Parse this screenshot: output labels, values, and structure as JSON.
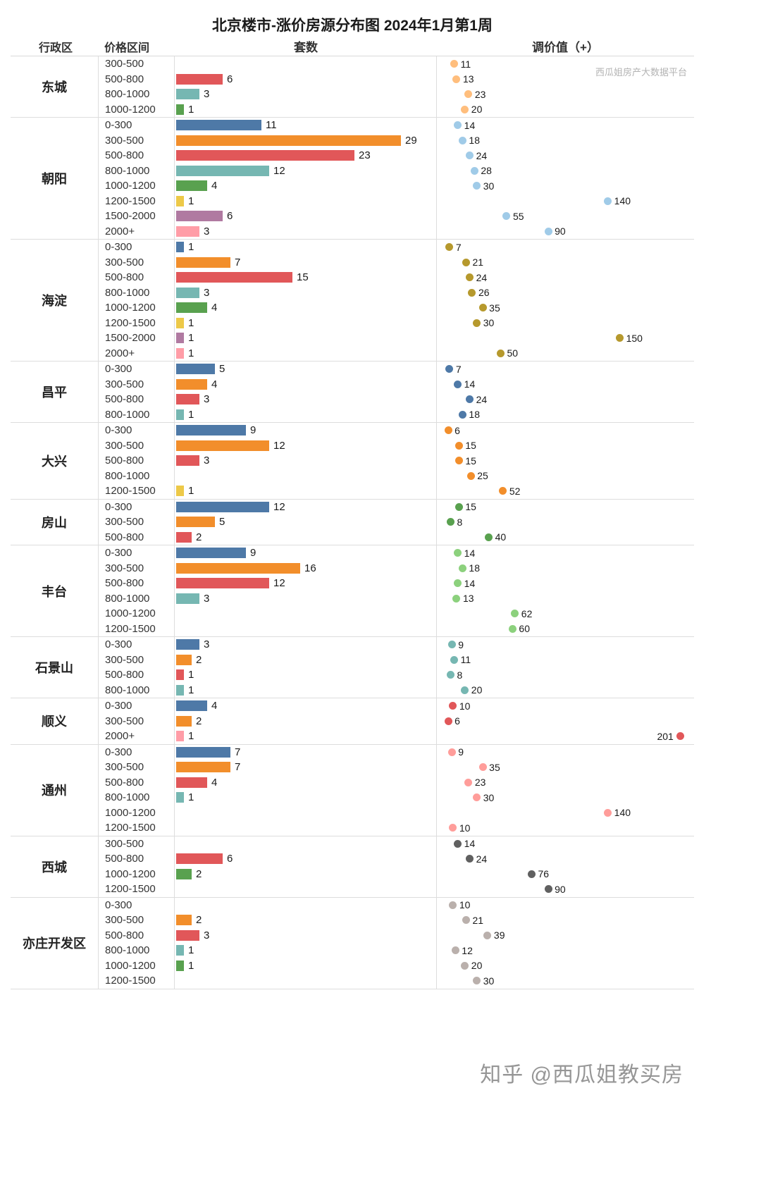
{
  "title": "北京楼市-涨价房源分布图 2024年1月第1周",
  "watermark": "西瓜姐房产大数据平台",
  "footer": "知乎 @西瓜姐教买房",
  "headers": {
    "district": "行政区",
    "price_range": "价格区间",
    "units": "套数",
    "adjustment": "调价值（+）"
  },
  "chart_data": {
    "type": "bar",
    "title": "北京楼市-涨价房源分布图 2024年1月第1周",
    "bar_axis_label": "套数",
    "dot_axis_label": "调价值（+）",
    "bar_axis_max": 30,
    "dot_axis_max": 210,
    "grid": "row-groups",
    "price_range_colors": {
      "0-300": "#4E79A7",
      "300-500": "#F28E2B",
      "500-800": "#E15759",
      "800-1000": "#76B7B2",
      "1000-1200": "#59A14F",
      "1200-1500": "#EDC948",
      "1500-2000": "#B07AA1",
      "2000+": "#FF9DA7"
    },
    "districts": [
      {
        "name": "东城",
        "dot_color": "#FFBE7D",
        "rows": [
          {
            "range": "300-500",
            "units": null,
            "adjust": 11
          },
          {
            "range": "500-800",
            "units": 6,
            "adjust": 13
          },
          {
            "range": "800-1000",
            "units": 3,
            "adjust": 23
          },
          {
            "range": "1000-1200",
            "units": 1,
            "adjust": 20
          }
        ]
      },
      {
        "name": "朝阳",
        "dot_color": "#A0CBE8",
        "rows": [
          {
            "range": "0-300",
            "units": 11,
            "adjust": 14
          },
          {
            "range": "300-500",
            "units": 29,
            "adjust": 18
          },
          {
            "range": "500-800",
            "units": 23,
            "adjust": 24
          },
          {
            "range": "800-1000",
            "units": 12,
            "adjust": 28
          },
          {
            "range": "1000-1200",
            "units": 4,
            "adjust": 30
          },
          {
            "range": "1200-1500",
            "units": 1,
            "adjust": 140
          },
          {
            "range": "1500-2000",
            "units": 6,
            "adjust": 55
          },
          {
            "range": "2000+",
            "units": 3,
            "adjust": 90
          }
        ]
      },
      {
        "name": "海淀",
        "dot_color": "#B6992D",
        "rows": [
          {
            "range": "0-300",
            "units": 1,
            "adjust": 7
          },
          {
            "range": "300-500",
            "units": 7,
            "adjust": 21
          },
          {
            "range": "500-800",
            "units": 15,
            "adjust": 24
          },
          {
            "range": "800-1000",
            "units": 3,
            "adjust": 26
          },
          {
            "range": "1000-1200",
            "units": 4,
            "adjust": 35
          },
          {
            "range": "1200-1500",
            "units": 1,
            "adjust": 30
          },
          {
            "range": "1500-2000",
            "units": 1,
            "adjust": 150
          },
          {
            "range": "2000+",
            "units": 1,
            "adjust": 50
          }
        ]
      },
      {
        "name": "昌平",
        "dot_color": "#4E79A7",
        "rows": [
          {
            "range": "0-300",
            "units": 5,
            "adjust": 7
          },
          {
            "range": "300-500",
            "units": 4,
            "adjust": 14
          },
          {
            "range": "500-800",
            "units": 3,
            "adjust": 24
          },
          {
            "range": "800-1000",
            "units": 1,
            "adjust": 18
          }
        ]
      },
      {
        "name": "大兴",
        "dot_color": "#F28E2B",
        "rows": [
          {
            "range": "0-300",
            "units": 9,
            "adjust": 6
          },
          {
            "range": "300-500",
            "units": 12,
            "adjust": 15
          },
          {
            "range": "500-800",
            "units": 3,
            "adjust": 15
          },
          {
            "range": "800-1000",
            "units": null,
            "adjust": 25
          },
          {
            "range": "1200-1500",
            "units": 1,
            "adjust": 52
          }
        ]
      },
      {
        "name": "房山",
        "dot_color": "#59A14F",
        "rows": [
          {
            "range": "0-300",
            "units": 12,
            "adjust": 15
          },
          {
            "range": "300-500",
            "units": 5,
            "adjust": 8
          },
          {
            "range": "500-800",
            "units": 2,
            "adjust": 40
          }
        ]
      },
      {
        "name": "丰台",
        "dot_color": "#8CD17D",
        "rows": [
          {
            "range": "0-300",
            "units": 9,
            "adjust": 14
          },
          {
            "range": "300-500",
            "units": 16,
            "adjust": 18
          },
          {
            "range": "500-800",
            "units": 12,
            "adjust": 14
          },
          {
            "range": "800-1000",
            "units": 3,
            "adjust": 13
          },
          {
            "range": "1000-1200",
            "units": null,
            "adjust": 62
          },
          {
            "range": "1200-1500",
            "units": null,
            "adjust": 60
          }
        ]
      },
      {
        "name": "石景山",
        "dot_color": "#76B7B2",
        "rows": [
          {
            "range": "0-300",
            "units": 3,
            "adjust": 9
          },
          {
            "range": "300-500",
            "units": 2,
            "adjust": 11
          },
          {
            "range": "500-800",
            "units": 1,
            "adjust": 8
          },
          {
            "range": "800-1000",
            "units": 1,
            "adjust": 20
          }
        ]
      },
      {
        "name": "顺义",
        "dot_color": "#E15759",
        "rows": [
          {
            "range": "0-300",
            "units": 4,
            "adjust": 10
          },
          {
            "range": "300-500",
            "units": 2,
            "adjust": 6
          },
          {
            "range": "2000+",
            "units": 1,
            "adjust": 201,
            "label_side": "left"
          }
        ]
      },
      {
        "name": "通州",
        "dot_color": "#FF9D9A",
        "rows": [
          {
            "range": "0-300",
            "units": 7,
            "adjust": 9
          },
          {
            "range": "300-500",
            "units": 7,
            "adjust": 35
          },
          {
            "range": "500-800",
            "units": 4,
            "adjust": 23
          },
          {
            "range": "800-1000",
            "units": 1,
            "adjust": 30
          },
          {
            "range": "1000-1200",
            "units": null,
            "adjust": 140
          },
          {
            "range": "1200-1500",
            "units": null,
            "adjust": 10
          }
        ]
      },
      {
        "name": "西城",
        "dot_color": "#606060",
        "rows": [
          {
            "range": "300-500",
            "units": null,
            "adjust": 14
          },
          {
            "range": "500-800",
            "units": 6,
            "adjust": 24
          },
          {
            "range": "1000-1200",
            "units": 2,
            "adjust": 76
          },
          {
            "range": "1200-1500",
            "units": null,
            "adjust": 90
          }
        ]
      },
      {
        "name": "亦庄开发区",
        "dot_color": "#BAB0AC",
        "rows": [
          {
            "range": "0-300",
            "units": null,
            "adjust": 10
          },
          {
            "range": "300-500",
            "units": 2,
            "adjust": 21
          },
          {
            "range": "500-800",
            "units": 3,
            "adjust": 39
          },
          {
            "range": "800-1000",
            "units": 1,
            "adjust": 12
          },
          {
            "range": "1000-1200",
            "units": 1,
            "adjust": 20
          },
          {
            "range": "1200-1500",
            "units": null,
            "adjust": 30
          }
        ]
      }
    ]
  }
}
